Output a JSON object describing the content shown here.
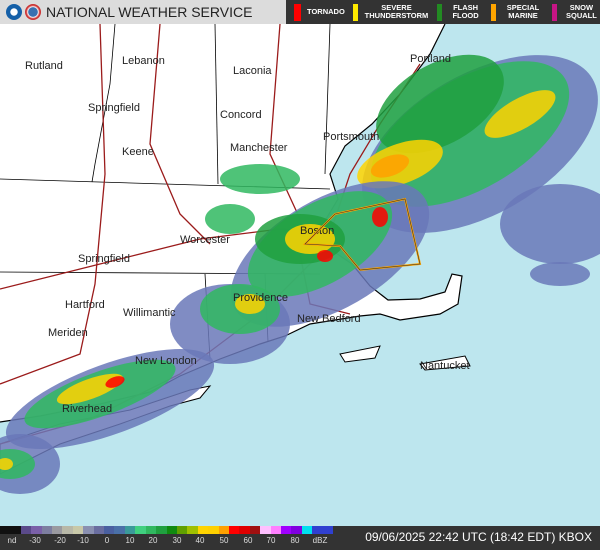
{
  "header": {
    "title": "NATIONAL WEATHER SERVICE",
    "logos": [
      "noaa-logo",
      "nws-logo"
    ]
  },
  "warnings_legend": [
    {
      "label": "TORNADO",
      "color": "#ff0000"
    },
    {
      "label": "SEVERE THUNDERSTORM",
      "color": "#ffea00"
    },
    {
      "label": "FLASH FLOOD",
      "color": "#228b22"
    },
    {
      "label": "SPECIAL MARINE",
      "color": "#ffa500"
    },
    {
      "label": "SNOW SQUALL",
      "color": "#c71585"
    }
  ],
  "cities": [
    "Rutland",
    "Lebanon",
    "Laconia",
    "Springfield",
    "Concord",
    "Keene",
    "Manchester",
    "Portsmouth",
    "Portland",
    "Worcester",
    "Boston",
    "Springfield",
    "Hartford",
    "Willimantic",
    "Providence",
    "New Bedford",
    "Meriden",
    "New London",
    "Riverhead",
    "Nantucket"
  ],
  "scale": {
    "ticks": [
      "nd",
      "-30",
      "-20",
      "-10",
      "0",
      "10",
      "20",
      "30",
      "40",
      "50",
      "60",
      "70",
      "80",
      "dBZ"
    ],
    "colors": [
      "#111",
      "#111",
      "#5a4a8a",
      "#7a60a8",
      "#7d7ea0",
      "#9a9aa0",
      "#b8b8a8",
      "#c8c8a8",
      "#8a90b0",
      "#6a6ea0",
      "#4a60a0",
      "#4a70a8",
      "#3a9a9a",
      "#40d080",
      "#30b860",
      "#20a040",
      "#108a10",
      "#60a000",
      "#a0c000",
      "#ffd400",
      "#ffd000",
      "#ffa000",
      "#ff0000",
      "#e00000",
      "#a01010",
      "#ffc0ff",
      "#ff80ff",
      "#a000ff",
      "#8000e0",
      "#00e0f0",
      "#3040d0",
      "#3040d0"
    ]
  },
  "timestamp": "09/06/2025 22:42 UTC (18:42 EDT) KBOX"
}
